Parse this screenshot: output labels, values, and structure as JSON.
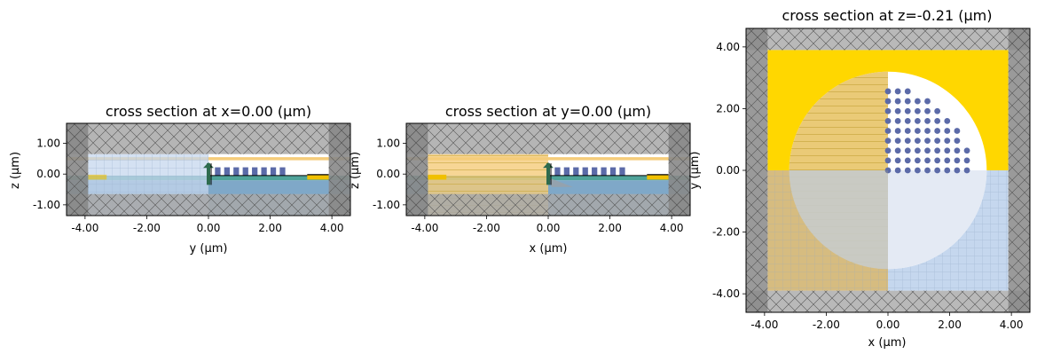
{
  "colors": {
    "background": "#ffffff",
    "pml_gray": "#a8a8a8",
    "pml_dark_gray": "#888888",
    "substrate_teal": "#4fa39a",
    "box_blue": "#7fa8c8",
    "grating_blue": "#5b6aa8",
    "mirror_yellow": "#ffd700",
    "light_yellow": "#f5cc7a",
    "symmetry_blue": "#c5d7ee",
    "waveguide_yellow": "#f0c000",
    "source_green": "#2e6b4e"
  },
  "chart_data": [
    {
      "type": "cross-section",
      "title": "cross section at x=0.00 (μm)",
      "xlabel": "y (μm)",
      "ylabel": "z (μm)",
      "xlim": [
        -4.6,
        4.6
      ],
      "ylim": [
        -1.35,
        1.65
      ],
      "xticks": [
        -4,
        -2,
        0,
        2,
        4
      ],
      "xtick_labels": [
        "-4.00",
        "-2.00",
        "0.00",
        "2.00",
        "4.00"
      ],
      "yticks": [
        -1,
        0,
        1
      ],
      "ytick_labels": [
        "-1.00",
        "0.00",
        "1.00"
      ],
      "pml_width": 0.7,
      "sim_box": {
        "x": [
          -3.9,
          3.9
        ],
        "z": [
          -0.65,
          0.65
        ]
      },
      "substrate_top": -0.2,
      "oxide_layer": [
        -0.2,
        -0.05
      ],
      "grating_teeth_x": [
        0.3,
        0.6,
        0.9,
        1.2,
        1.5,
        1.8,
        2.1,
        2.4
      ],
      "grating_z": [
        -0.05,
        0.22
      ],
      "top_mirror_z": [
        0.45,
        0.55
      ],
      "waveguide_x": [
        3.2,
        3.9
      ],
      "source_x": 0.0,
      "symmetry_x": [
        -3.9,
        0
      ]
    },
    {
      "type": "cross-section",
      "title": "cross section at y=0.00 (μm)",
      "xlabel": "x (μm)",
      "ylabel": "z (μm)",
      "xlim": [
        -4.6,
        4.6
      ],
      "ylim": [
        -1.35,
        1.65
      ],
      "xticks": [
        -4,
        -2,
        0,
        2,
        4
      ],
      "xtick_labels": [
        "-4.00",
        "-2.00",
        "0.00",
        "2.00",
        "4.00"
      ],
      "yticks": [
        -1,
        0,
        1
      ],
      "ytick_labels": [
        "-1.00",
        "0.00",
        "1.00"
      ],
      "pml_width": 0.7,
      "sim_box": {
        "x": [
          -3.9,
          3.9
        ],
        "z": [
          -0.65,
          0.65
        ]
      },
      "substrate_top": -0.2,
      "oxide_layer": [
        -0.2,
        -0.05
      ],
      "grating_teeth_x": [
        0.3,
        0.6,
        0.9,
        1.2,
        1.5,
        1.8,
        2.1,
        2.4
      ],
      "grating_z": [
        -0.05,
        0.22
      ],
      "top_mirror_z": [
        0.45,
        0.55
      ],
      "waveguide_x": [
        3.2,
        3.9
      ],
      "source_x": 0.0,
      "symmetry_x": [
        -3.9,
        0
      ]
    },
    {
      "type": "cross-section",
      "title": "cross section at z=-0.21 (μm)",
      "xlabel": "x (μm)",
      "ylabel": "y (μm)",
      "xlim": [
        -4.6,
        4.6
      ],
      "ylim": [
        -4.6,
        4.6
      ],
      "xticks": [
        -4,
        -2,
        0,
        2,
        4
      ],
      "xtick_labels": [
        "-4.00",
        "-2.00",
        "0.00",
        "2.00",
        "4.00"
      ],
      "yticks": [
        -4,
        -2,
        0,
        2,
        4
      ],
      "ytick_labels": [
        "-4.00",
        "-2.00",
        "0.00",
        "2.00",
        "4.00"
      ],
      "pml_width": 0.7,
      "sim_box": [
        -3.9,
        3.9
      ],
      "disk_radius": 3.2,
      "hole_spacing": 0.32,
      "hole_region_radius": 2.7,
      "hole_max_x": 2.6
    }
  ]
}
